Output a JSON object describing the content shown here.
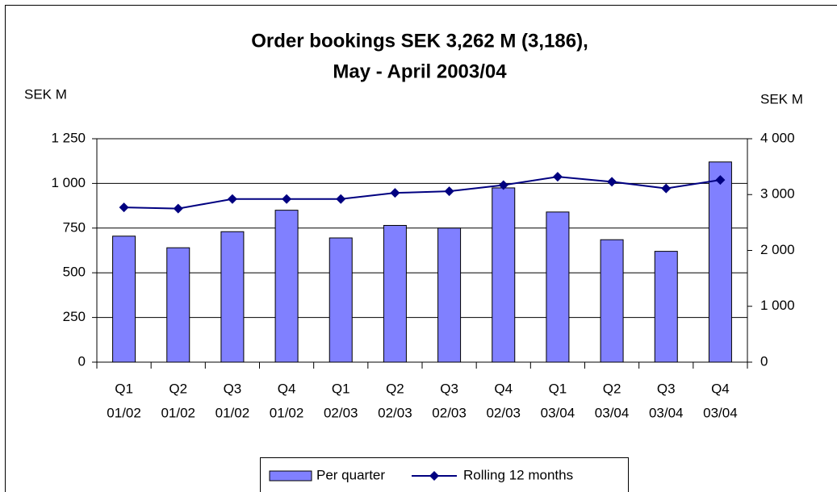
{
  "chart_data": {
    "type": "bar_line",
    "title": [
      "Order bookings SEK 3,262 M (3,186),",
      "May - April 2003/04"
    ],
    "y_label": "SEK M",
    "y2_label": "SEK M",
    "categories": [
      [
        "Q1",
        "01/02"
      ],
      [
        "Q2",
        "01/02"
      ],
      [
        "Q3",
        "01/02"
      ],
      [
        "Q4",
        "01/02"
      ],
      [
        "Q1",
        "02/03"
      ],
      [
        "Q2",
        "02/03"
      ],
      [
        "Q3",
        "02/03"
      ],
      [
        "Q4",
        "02/03"
      ],
      [
        "Q1",
        "03/04"
      ],
      [
        "Q2",
        "03/04"
      ],
      [
        "Q3",
        "03/04"
      ],
      [
        "Q4",
        "03/04"
      ]
    ],
    "series": [
      {
        "name": "Per quarter",
        "type": "bar",
        "color": "#8080ff",
        "values": [
          705,
          640,
          730,
          850,
          695,
          765,
          750,
          975,
          840,
          685,
          620,
          1120
        ]
      },
      {
        "name": "Rolling 12 months",
        "type": "line",
        "axis": "y2",
        "color": "#000080",
        "values": [
          2770,
          2750,
          2920,
          2920,
          2920,
          3030,
          3060,
          3170,
          3320,
          3230,
          3110,
          3262
        ]
      }
    ],
    "ylim": [
      0,
      1250
    ],
    "yticks": [
      0,
      250,
      500,
      750,
      {
        "value": 1000,
        "label": "1 000"
      },
      {
        "value": 1250,
        "label": "1 250"
      }
    ],
    "y2lim": [
      0,
      4000
    ],
    "y2ticks": [
      0,
      {
        "value": 1000,
        "label": "1 000"
      },
      {
        "value": 2000,
        "label": "2 000"
      },
      {
        "value": 3000,
        "label": "3 000"
      },
      {
        "value": 4000,
        "label": "4 000"
      }
    ],
    "grid": true,
    "legend": "bottom"
  }
}
